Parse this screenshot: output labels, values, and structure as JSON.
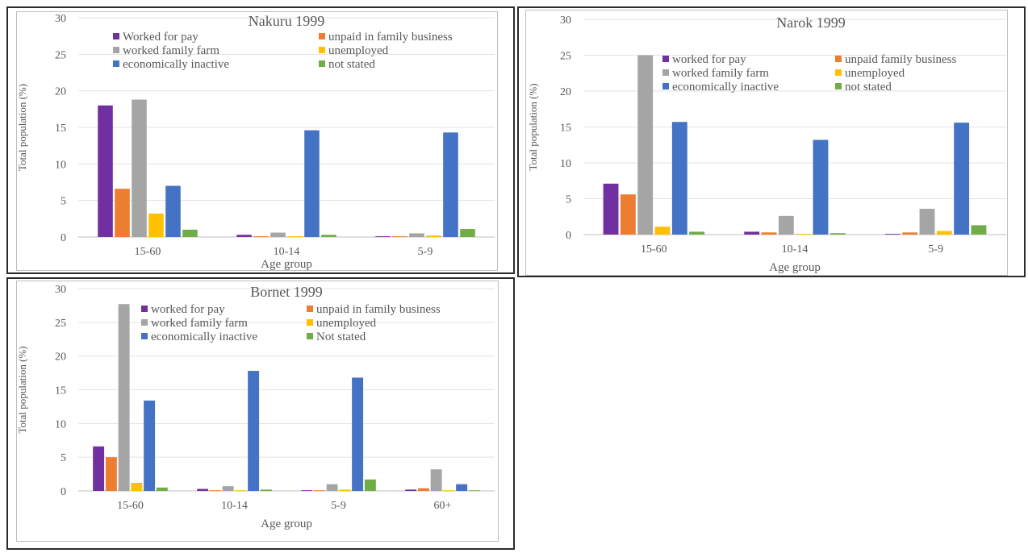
{
  "chart_data": [
    {
      "type": "bar",
      "title": "Nakuru 1999",
      "xlabel": "Age group",
      "ylabel": "Total population (%)",
      "ylim": [
        0,
        30
      ],
      "yticks": [
        "0",
        "5",
        "10",
        "15",
        "20",
        "25",
        "30"
      ],
      "categories": [
        "15-60",
        "10-14",
        "5-9"
      ],
      "grid": true,
      "legend_position": "top",
      "series": [
        {
          "name": "Worked for pay",
          "color": "#7030a0",
          "values": [
            18.0,
            0.3,
            0.1
          ]
        },
        {
          "name": "unpaid in family business",
          "color": "#ed7d31",
          "values": [
            6.6,
            0.1,
            0.1
          ]
        },
        {
          "name": "worked family farm",
          "color": "#a5a5a5",
          "values": [
            18.8,
            0.6,
            0.5
          ]
        },
        {
          "name": "unemployed",
          "color": "#ffc000",
          "values": [
            3.2,
            0.1,
            0.2
          ]
        },
        {
          "name": "economically inactive",
          "color": "#4472c4",
          "values": [
            7.0,
            14.6,
            14.3
          ]
        },
        {
          "name": "not stated",
          "color": "#70ad47",
          "values": [
            1.0,
            0.3,
            1.1
          ]
        }
      ]
    },
    {
      "type": "bar",
      "title": "Narok 1999",
      "xlabel": "Age group",
      "ylabel": "Total population (%)",
      "ylim": [
        0,
        30
      ],
      "yticks": [
        "0",
        "5",
        "10",
        "15",
        "20",
        "25",
        "30"
      ],
      "categories": [
        "15-60",
        "10-14",
        "5-9"
      ],
      "grid": true,
      "legend_position": "top",
      "series": [
        {
          "name": "worked for pay",
          "color": "#7030a0",
          "values": [
            7.1,
            0.4,
            0.1
          ]
        },
        {
          "name": "unpaid family business",
          "color": "#ed7d31",
          "values": [
            5.6,
            0.3,
            0.3
          ]
        },
        {
          "name": "worked family farm",
          "color": "#a5a5a5",
          "values": [
            25.0,
            2.6,
            3.6
          ]
        },
        {
          "name": "unemployed",
          "color": "#ffc000",
          "values": [
            1.1,
            0.1,
            0.5
          ]
        },
        {
          "name": "economically inactive",
          "color": "#4472c4",
          "values": [
            15.7,
            13.2,
            15.6
          ]
        },
        {
          "name": "not stated",
          "color": "#70ad47",
          "values": [
            0.4,
            0.2,
            1.3
          ]
        }
      ]
    },
    {
      "type": "bar",
      "title": "Bornet 1999",
      "xlabel": "Age group",
      "ylabel": "Total population (%)",
      "ylim": [
        0,
        30
      ],
      "yticks": [
        "0",
        "5",
        "10",
        "15",
        "20",
        "25",
        "30"
      ],
      "categories": [
        "15-60",
        "10-14",
        "5-9",
        "60+"
      ],
      "grid": true,
      "legend_position": "top",
      "series": [
        {
          "name": "worked for pay",
          "color": "#7030a0",
          "values": [
            6.6,
            0.3,
            0.1,
            0.2
          ]
        },
        {
          "name": "unpaid in family business",
          "color": "#ed7d31",
          "values": [
            5.0,
            0.1,
            0.1,
            0.4
          ]
        },
        {
          "name": "worked family farm",
          "color": "#a5a5a5",
          "values": [
            27.7,
            0.7,
            1.0,
            3.2
          ]
        },
        {
          "name": "unemployed",
          "color": "#ffc000",
          "values": [
            1.2,
            0.1,
            0.2,
            0.1
          ]
        },
        {
          "name": "economically inactive",
          "color": "#4472c4",
          "values": [
            13.4,
            17.8,
            16.8,
            1.0
          ]
        },
        {
          "name": "Not stated",
          "color": "#70ad47",
          "values": [
            0.5,
            0.2,
            1.7,
            0.1
          ]
        }
      ]
    }
  ]
}
